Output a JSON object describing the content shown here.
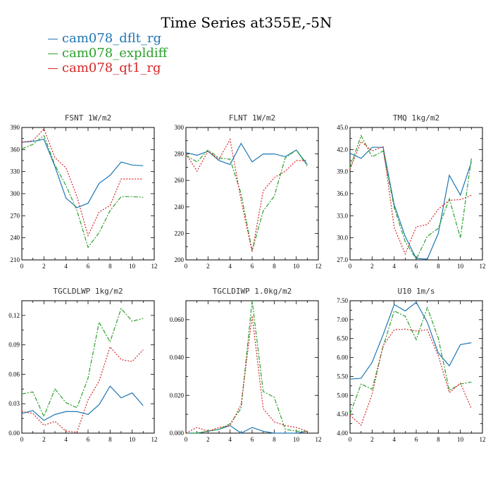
{
  "title": "Time Series at355E,-5N",
  "legend": [
    {
      "label": "cam078_dflt_rg",
      "color": "#1f77b4"
    },
    {
      "label": "cam078_expldiff",
      "color": "#2ca02c"
    },
    {
      "label": "cam078_qt1_rg",
      "color": "#d62728"
    }
  ],
  "chart_data": [
    {
      "type": "line",
      "title": "FSNT   1W/m2",
      "x": [
        0,
        1,
        2,
        3,
        4,
        5,
        6,
        7,
        8,
        9,
        10,
        11
      ],
      "xlim": [
        0,
        12
      ],
      "xticks": [
        "0",
        "2",
        "4",
        "6",
        "8",
        "10",
        "12"
      ],
      "ylim": [
        210,
        390
      ],
      "yticks": [
        "210",
        "240",
        "270",
        "300",
        "330",
        "360",
        "390"
      ],
      "series": [
        {
          "name": "cam078_dflt_rg",
          "values": [
            370,
            371,
            374,
            337,
            294,
            281,
            287,
            314,
            325,
            343,
            339,
            338
          ]
        },
        {
          "name": "cam078_expldiff",
          "values": [
            361,
            367,
            379,
            339,
            311,
            277,
            227,
            247,
            277,
            296,
            296,
            295
          ]
        },
        {
          "name": "cam078_qt1_rg",
          "values": [
            370,
            372,
            388,
            349,
            335,
            296,
            243,
            275,
            284,
            320,
            320,
            320
          ]
        }
      ]
    },
    {
      "type": "line",
      "title": "FLNT   1W/m2",
      "x": [
        0,
        1,
        2,
        3,
        4,
        5,
        6,
        7,
        8,
        9,
        10,
        11
      ],
      "xlim": [
        0,
        12
      ],
      "xticks": [
        "0",
        "2",
        "4",
        "6",
        "8",
        "10",
        "12"
      ],
      "ylim": [
        200,
        300
      ],
      "yticks": [
        "200",
        "220",
        "240",
        "260",
        "280",
        "300"
      ],
      "series": [
        {
          "name": "cam078_dflt_rg",
          "values": [
            281,
            279,
            282,
            275,
            272,
            288,
            274,
            280,
            280,
            278,
            283,
            272
          ]
        },
        {
          "name": "cam078_expldiff",
          "values": [
            279,
            274,
            283,
            277,
            276,
            250,
            207,
            237,
            248,
            277,
            283,
            271
          ]
        },
        {
          "name": "cam078_qt1_rg",
          "values": [
            280,
            267,
            282,
            276,
            291,
            245,
            206,
            252,
            262,
            267,
            275,
            275
          ]
        }
      ]
    },
    {
      "type": "line",
      "title": "TMQ   1kg/m2",
      "x": [
        0,
        1,
        2,
        3,
        4,
        5,
        6,
        7,
        8,
        9,
        10,
        11
      ],
      "xlim": [
        0,
        12
      ],
      "xticks": [
        "0",
        "2",
        "4",
        "6",
        "8",
        "10",
        "12"
      ],
      "ylim": [
        27,
        45
      ],
      "yticks": [
        "27.0",
        "30.0",
        "33.0",
        "36.0",
        "39.0",
        "42.0",
        "45.0"
      ],
      "series": [
        {
          "name": "cam078_dflt_rg",
          "values": [
            41.5,
            40.8,
            42.3,
            42.3,
            34.5,
            30.2,
            27.2,
            27.1,
            30.6,
            38.5,
            35.8,
            40.3
          ]
        },
        {
          "name": "cam078_expldiff",
          "values": [
            39.5,
            43.9,
            41.0,
            41.8,
            34.1,
            29.5,
            27.1,
            30.2,
            31.3,
            35.3,
            30.0,
            40.8
          ]
        },
        {
          "name": "cam078_qt1_rg",
          "values": [
            39.3,
            43.1,
            41.8,
            42.4,
            31.4,
            27.8,
            31.5,
            31.8,
            33.9,
            35.1,
            35.2,
            35.8
          ]
        }
      ]
    },
    {
      "type": "line",
      "title": "TGCLDLWP   1kg/m2",
      "x": [
        0,
        1,
        2,
        3,
        4,
        5,
        6,
        7,
        8,
        9,
        10,
        11
      ],
      "xlim": [
        0,
        12
      ],
      "xticks": [
        "0",
        "2",
        "4",
        "6",
        "8",
        "10",
        "12"
      ],
      "ylim": [
        0,
        0.135
      ],
      "yticks": [
        "0.00",
        "0.03",
        "0.06",
        "0.09",
        "0.12"
      ],
      "series": [
        {
          "name": "cam078_dflt_rg",
          "values": [
            0.02,
            0.023,
            0.013,
            0.019,
            0.022,
            0.022,
            0.019,
            0.029,
            0.048,
            0.036,
            0.041,
            0.028
          ]
        },
        {
          "name": "cam078_expldiff",
          "values": [
            0.04,
            0.042,
            0.017,
            0.045,
            0.031,
            0.026,
            0.056,
            0.113,
            0.093,
            0.127,
            0.114,
            0.117
          ]
        },
        {
          "name": "cam078_qt1_rg",
          "values": [
            0.022,
            0.02,
            0.008,
            0.012,
            0.002,
            0.001,
            0.034,
            0.053,
            0.088,
            0.075,
            0.073,
            0.085
          ]
        }
      ]
    },
    {
      "type": "line",
      "title": "TGCLDIWP   1.0kg/m2",
      "x": [
        0,
        1,
        2,
        3,
        4,
        5,
        6,
        7,
        8,
        9,
        10,
        11
      ],
      "xlim": [
        0,
        12
      ],
      "xticks": [
        "0",
        "2",
        "4",
        "6",
        "8",
        "10",
        "12"
      ],
      "ylim": [
        0,
        0.07
      ],
      "yticks": [
        "0.000",
        "0.020",
        "0.040",
        "0.060"
      ],
      "series": [
        {
          "name": "cam078_dflt_rg",
          "values": [
            0.0,
            0.0,
            0.001,
            0.002,
            0.004,
            0.0,
            0.003,
            0.001,
            0.0,
            0.0,
            0.0,
            0.001
          ]
        },
        {
          "name": "cam078_expldiff",
          "values": [
            0.0,
            0.0,
            0.001,
            0.002,
            0.005,
            0.013,
            0.07,
            0.022,
            0.019,
            0.002,
            0.001,
            0.001
          ]
        },
        {
          "name": "cam078_qt1_rg",
          "values": [
            0.0,
            0.003,
            0.001,
            0.003,
            0.004,
            0.015,
            0.062,
            0.013,
            0.006,
            0.004,
            0.003,
            0.001
          ]
        }
      ]
    },
    {
      "type": "line",
      "title": "U10   1m/s",
      "x": [
        0,
        1,
        2,
        3,
        4,
        5,
        6,
        7,
        8,
        9,
        10,
        11
      ],
      "xlim": [
        0,
        12
      ],
      "xticks": [
        "0",
        "2",
        "4",
        "6",
        "8",
        "10",
        "12"
      ],
      "ylim": [
        4,
        7.5
      ],
      "yticks": [
        "4.00",
        "4.50",
        "5.00",
        "5.50",
        "6.00",
        "6.50",
        "7.00",
        "7.50"
      ],
      "series": [
        {
          "name": "cam078_dflt_rg",
          "values": [
            5.43,
            5.45,
            5.87,
            6.6,
            7.4,
            7.23,
            7.46,
            6.93,
            6.12,
            5.78,
            6.34,
            6.39
          ]
        },
        {
          "name": "cam078_expldiff",
          "values": [
            4.5,
            5.3,
            5.16,
            6.29,
            7.23,
            7.09,
            6.47,
            7.32,
            6.51,
            5.13,
            5.3,
            5.35
          ]
        },
        {
          "name": "cam078_qt1_rg",
          "values": [
            4.47,
            4.21,
            5.02,
            6.32,
            6.73,
            6.75,
            6.7,
            6.73,
            6.05,
            5.07,
            5.32,
            4.65
          ]
        }
      ]
    }
  ]
}
